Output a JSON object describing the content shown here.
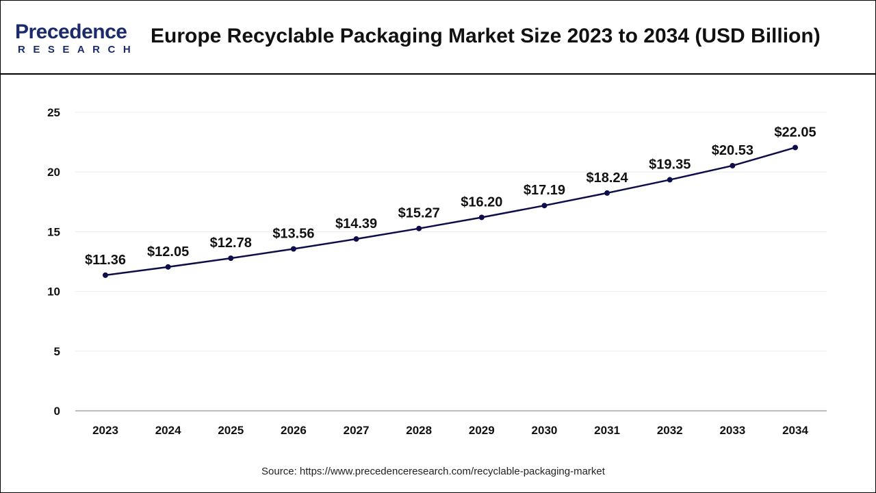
{
  "header": {
    "logo_text": "Precedence",
    "logo_subtext": "RESEARCH",
    "title": "Europe Recyclable Packaging Market Size 2023 to 2034 (USD Billion)"
  },
  "chart_data": {
    "type": "line",
    "title": "Europe Recyclable Packaging Market Size 2023 to 2034 (USD Billion)",
    "categories": [
      "2023",
      "2024",
      "2025",
      "2026",
      "2027",
      "2028",
      "2029",
      "2030",
      "2031",
      "2032",
      "2033",
      "2034"
    ],
    "values": [
      11.36,
      12.05,
      12.78,
      13.56,
      14.39,
      15.27,
      16.2,
      17.19,
      18.24,
      19.35,
      20.53,
      22.05
    ],
    "data_labels": [
      "$11.36",
      "$12.05",
      "$12.78",
      "$13.56",
      "$14.39",
      "$15.27",
      "$16.20",
      "$17.19",
      "$18.24",
      "$19.35",
      "$20.53",
      "$22.05"
    ],
    "y_ticks": [
      "0",
      "5",
      "10",
      "15",
      "20",
      "25"
    ],
    "ylim": [
      0,
      25
    ],
    "grid": true,
    "line_color": "#0d0d4a",
    "xlabel": "",
    "ylabel": ""
  },
  "source": "Source: https://www.precedenceresearch.com/recyclable-packaging-market"
}
